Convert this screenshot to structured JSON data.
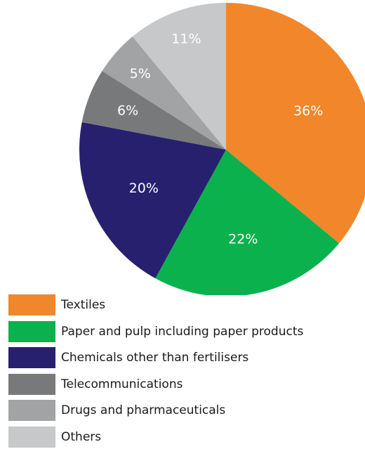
{
  "chart_data": {
    "type": "pie",
    "categories": [
      "Textiles",
      "Paper and pulp including paper products",
      "Chemicals other than fertilisers",
      "Telecommunications",
      "Drugs and pharmaceuticals",
      "Others"
    ],
    "values": [
      36,
      22,
      20,
      6,
      5,
      11
    ],
    "value_labels": [
      "36%",
      "22%",
      "20%",
      "6%",
      "5%",
      "11%"
    ],
    "colors": [
      "#f2862b",
      "#0bb14d",
      "#27206e",
      "#78797b",
      "#a2a3a5",
      "#c7c8ca"
    ],
    "start_angle_deg": 0,
    "direction": "clockwise",
    "legend_position": "bottom-left",
    "title": ""
  }
}
